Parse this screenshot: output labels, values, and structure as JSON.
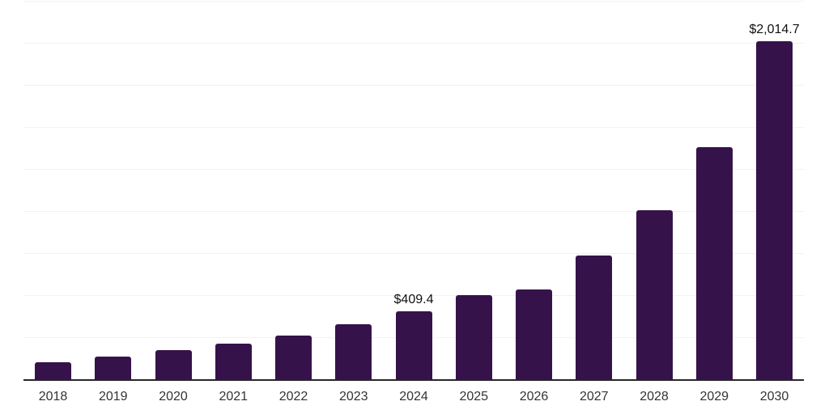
{
  "chart_data": {
    "type": "bar",
    "title": "",
    "xlabel": "",
    "ylabel": "",
    "categories": [
      "2018",
      "2019",
      "2020",
      "2021",
      "2022",
      "2023",
      "2024",
      "2025",
      "2026",
      "2027",
      "2028",
      "2029",
      "2030"
    ],
    "values": [
      108,
      140,
      177,
      218,
      266,
      332,
      409.4,
      505,
      540,
      740,
      1008,
      1385,
      2014.7
    ],
    "bar_labels": [
      "",
      "",
      "",
      "",
      "",
      "",
      "$409.4",
      "",
      "",
      "",
      "",
      "",
      "$2,014.7"
    ],
    "ylim": [
      0,
      2250
    ],
    "gridline_interval": 250,
    "grid": true,
    "legend": false,
    "colors": {
      "bar": "#36124b",
      "gridline": "#f2f2f2",
      "axis_line": "#262626",
      "value_label": "#111111",
      "tick_label": "#333333",
      "background": "#ffffff"
    }
  }
}
